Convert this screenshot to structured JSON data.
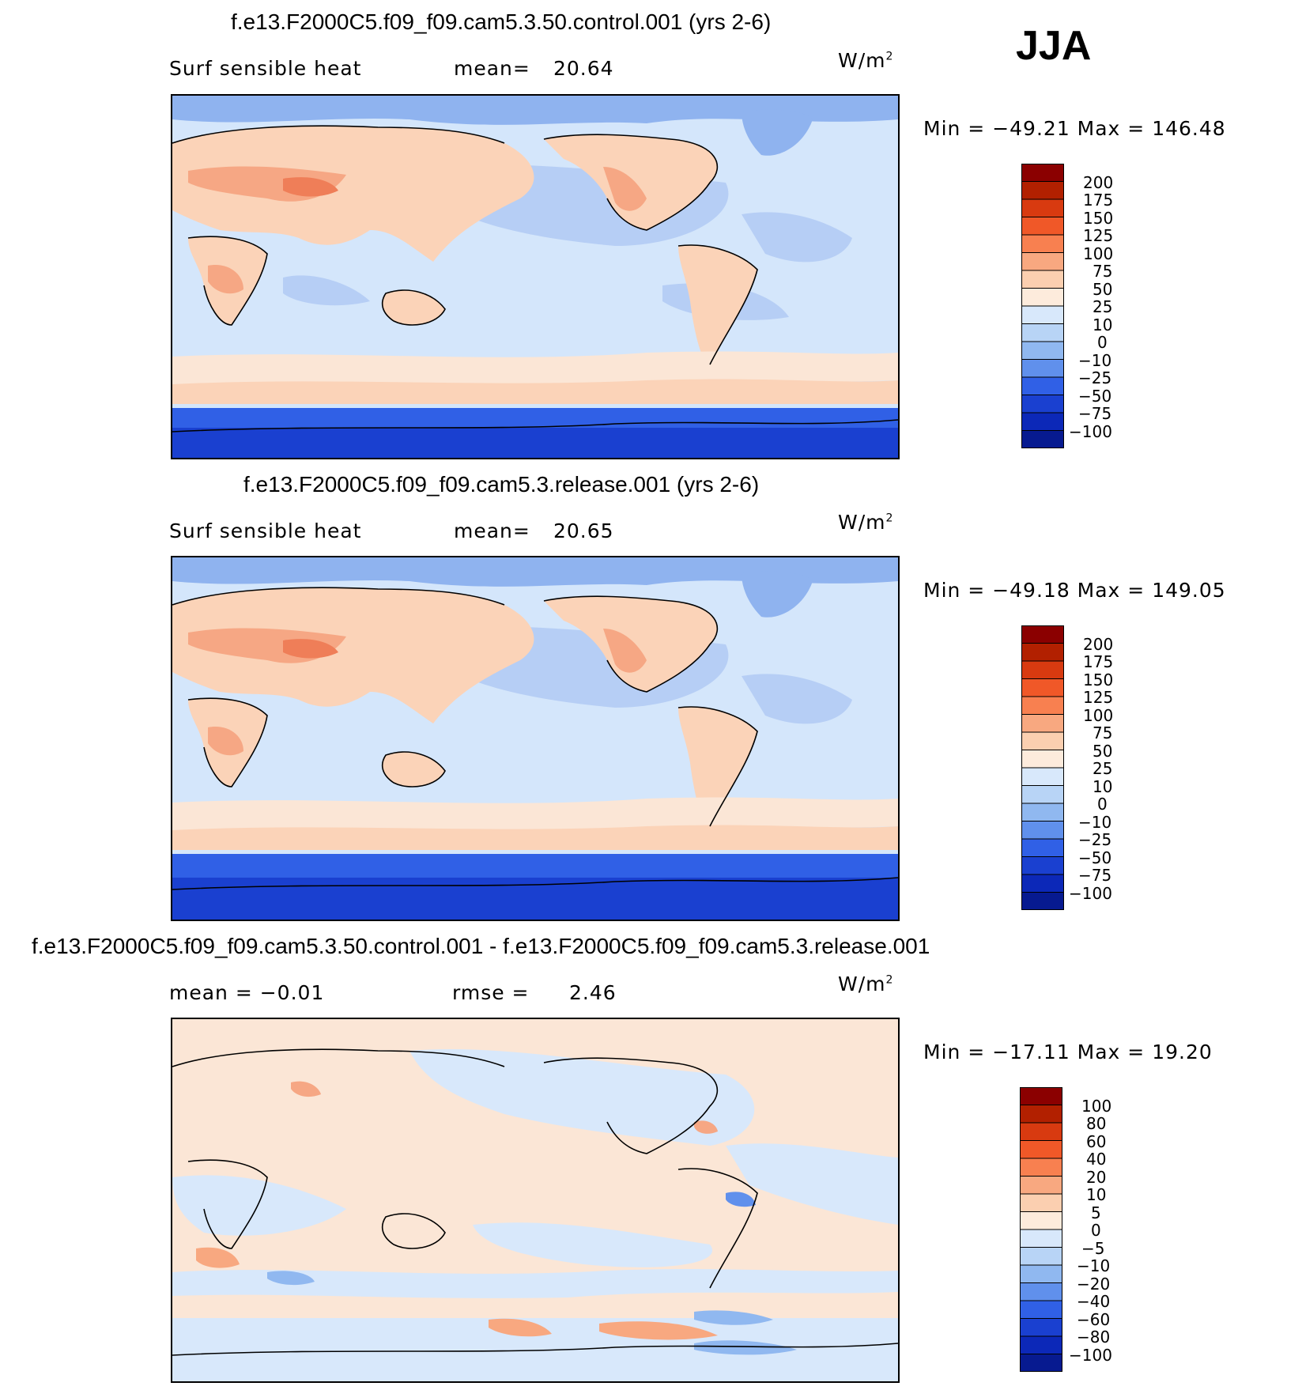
{
  "season": "JJA",
  "units_base": "W/m",
  "units_exp": "2",
  "panels": [
    {
      "title": "f.e13.F2000C5.f09_f09.cam5.3.50.control.001 (yrs 2-6)",
      "left_label": "Surf  sensible  heat",
      "stat_label": "mean=",
      "stat_value": "20.64",
      "minmax": "Min  =  −49.21  Max  =  146.48",
      "colorbar": [
        "200",
        "175",
        "150",
        "125",
        "100",
        "75",
        "50",
        "25",
        "10",
        "0",
        "−10",
        "−25",
        "−50",
        "−75",
        "−100"
      ]
    },
    {
      "title": "f.e13.F2000C5.f09_f09.cam5.3.release.001 (yrs 2-6)",
      "left_label": "Surf  sensible  heat",
      "stat_label": "mean=",
      "stat_value": "20.65",
      "minmax": "Min  =  −49.18  Max  =  149.05",
      "colorbar": [
        "200",
        "175",
        "150",
        "125",
        "100",
        "75",
        "50",
        "25",
        "10",
        "0",
        "−10",
        "−25",
        "−50",
        "−75",
        "−100"
      ]
    },
    {
      "title": "f.e13.F2000C5.f09_f09.cam5.3.50.control.001 - f.e13.F2000C5.f09_f09.cam5.3.release.001",
      "left_label": "mean =   −0.01",
      "stat_label": "rmse =",
      "stat_value": "2.46",
      "minmax": "Min  =  −17.11  Max  =    19.20",
      "colorbar": [
        "100",
        "80",
        "60",
        "40",
        "20",
        "10",
        "5",
        "0",
        "−5",
        "−10",
        "−20",
        "−40",
        "−60",
        "−80",
        "−100"
      ]
    }
  ],
  "colorbar_colors": [
    "#8b0000",
    "#b22000",
    "#d83a10",
    "#f05828",
    "#f88050",
    "#f8a880",
    "#fbcfb0",
    "#fdebdc",
    "#d8e8fb",
    "#b8d4f6",
    "#90b8f0",
    "#6090ec",
    "#3060e6",
    "#1a40d0",
    "#0c28b8",
    "#071a90"
  ]
}
